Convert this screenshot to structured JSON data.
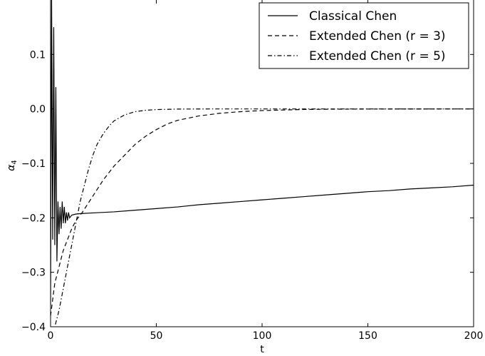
{
  "chart_data": {
    "type": "line",
    "title": "",
    "xlabel": "t",
    "ylabel": "α",
    "ylabel_subscript": "4",
    "xlim": [
      0,
      200
    ],
    "ylim": [
      -0.4,
      0.2
    ],
    "xticks": [
      0,
      50,
      100,
      150,
      200
    ],
    "xtick_labels": [
      "0",
      "50",
      "100",
      "150",
      "200"
    ],
    "yticks": [
      -0.4,
      -0.3,
      -0.2,
      -0.1,
      0.0,
      0.1
    ],
    "ytick_labels": [
      "−0.4",
      "−0.3",
      "−0.2",
      "−0.1",
      "0.0",
      "0.1"
    ],
    "grid": false,
    "legend_position": "top-right",
    "series": [
      {
        "name": "Classical Chen",
        "style": "solid",
        "color": "#000000",
        "x": [
          0,
          0.5,
          1,
          1.5,
          2,
          2.5,
          3,
          3.5,
          4,
          4.5,
          5,
          5.5,
          6,
          6.5,
          7,
          7.5,
          8,
          8.5,
          9,
          10,
          12,
          15,
          20,
          30,
          40,
          50,
          60,
          70,
          80,
          90,
          100,
          110,
          120,
          130,
          140,
          150,
          160,
          170,
          180,
          190,
          200
        ],
        "values": [
          -0.36,
          0.2,
          -0.24,
          0.15,
          -0.25,
          0.04,
          -0.28,
          -0.17,
          -0.23,
          -0.18,
          -0.22,
          -0.17,
          -0.21,
          -0.18,
          -0.21,
          -0.19,
          -0.205,
          -0.19,
          -0.2,
          -0.195,
          -0.193,
          -0.192,
          -0.191,
          -0.189,
          -0.186,
          -0.183,
          -0.18,
          -0.176,
          -0.173,
          -0.17,
          -0.167,
          -0.164,
          -0.161,
          -0.158,
          -0.155,
          -0.152,
          -0.15,
          -0.147,
          -0.145,
          -0.143,
          -0.14
        ]
      },
      {
        "name": "Extended Chen (r = 3)",
        "style": "dashed",
        "color": "#000000",
        "x": [
          0,
          2,
          4,
          6,
          8,
          10,
          12,
          15,
          20,
          25,
          30,
          35,
          40,
          45,
          50,
          55,
          60,
          70,
          80,
          90,
          100,
          110,
          120,
          130,
          150,
          175,
          200
        ],
        "values": [
          -0.38,
          -0.32,
          -0.29,
          -0.26,
          -0.24,
          -0.22,
          -0.205,
          -0.19,
          -0.16,
          -0.13,
          -0.105,
          -0.085,
          -0.065,
          -0.05,
          -0.038,
          -0.028,
          -0.021,
          -0.013,
          -0.008,
          -0.005,
          -0.003,
          -0.002,
          -0.001,
          -0.0006,
          -0.0002,
          -0.0001,
          0.0
        ]
      },
      {
        "name": "Extended Chen (r = 5)",
        "style": "dashdot",
        "color": "#000000",
        "x": [
          0,
          2,
          4,
          6,
          8,
          10,
          12,
          14,
          16,
          18,
          20,
          22,
          25,
          28,
          30,
          35,
          40,
          45,
          50,
          60,
          70,
          80,
          100,
          125,
          150,
          175,
          200
        ],
        "values": [
          -0.43,
          -0.4,
          -0.37,
          -0.33,
          -0.29,
          -0.25,
          -0.21,
          -0.17,
          -0.14,
          -0.11,
          -0.085,
          -0.065,
          -0.045,
          -0.03,
          -0.022,
          -0.011,
          -0.005,
          -0.0025,
          -0.0012,
          -0.0003,
          -0.0001,
          0.0,
          0.0,
          0.0,
          0.0,
          0.0,
          0.0
        ]
      }
    ]
  }
}
